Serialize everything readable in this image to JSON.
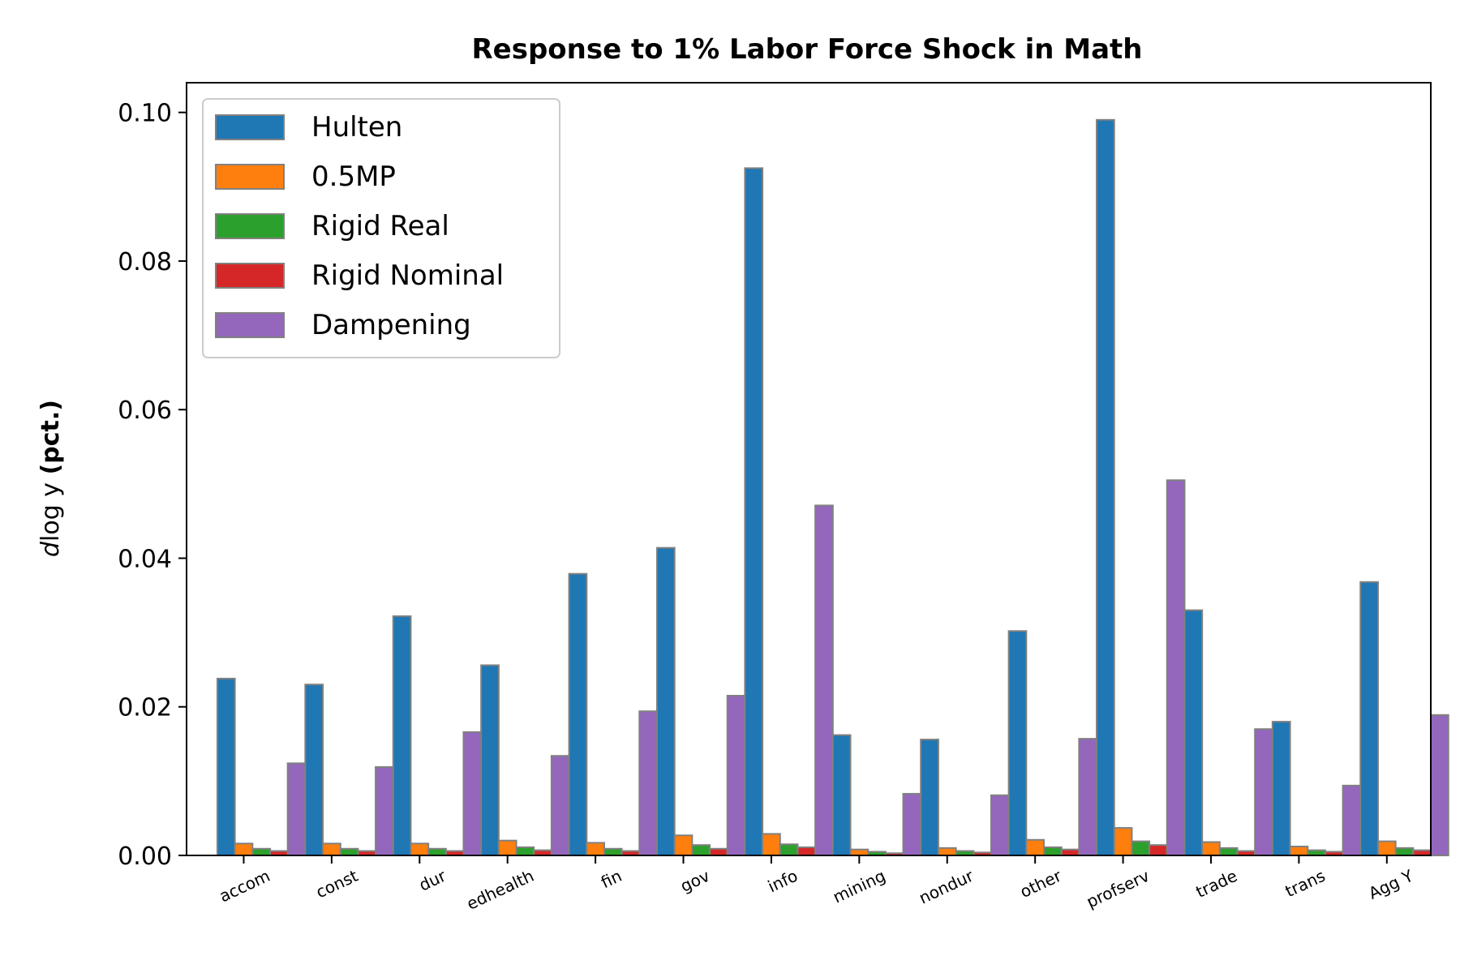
{
  "chart_data": {
    "type": "bar",
    "title": "Response to 1% Labor Force Shock in Math",
    "ylabel_italic": "d",
    "ylabel_math": "log y",
    "ylabel_bold": "(pct.)",
    "xlabel": "",
    "categories": [
      "accom",
      "const",
      "dur",
      "edhealth",
      "fin",
      "gov",
      "info",
      "mining",
      "nondur",
      "other",
      "profserv",
      "trade",
      "trans",
      "Agg Y"
    ],
    "ylim": [
      0,
      0.104
    ],
    "yticks": [
      0.0,
      0.02,
      0.04,
      0.06,
      0.08,
      0.1
    ],
    "ytick_labels": [
      "0.00",
      "0.02",
      "0.04",
      "0.06",
      "0.08",
      "0.10"
    ],
    "grid": false,
    "legend_position": "top-left",
    "series": [
      {
        "name": "Hulten",
        "color": "#1f77b4",
        "values": [
          0.0238,
          0.023,
          0.0322,
          0.0256,
          0.0379,
          0.0414,
          0.0925,
          0.0162,
          0.0156,
          0.0302,
          0.099,
          0.033,
          0.018,
          0.0368
        ]
      },
      {
        "name": "0.5MP",
        "color": "#ff7f0e",
        "values": [
          0.0016,
          0.0016,
          0.0016,
          0.002,
          0.0017,
          0.0027,
          0.0029,
          0.0008,
          0.001,
          0.0021,
          0.0037,
          0.0018,
          0.0012,
          0.0019
        ]
      },
      {
        "name": "Rigid Real",
        "color": "#2ca02c",
        "values": [
          0.0009,
          0.0009,
          0.0009,
          0.0011,
          0.0009,
          0.0014,
          0.0015,
          0.0005,
          0.0006,
          0.0011,
          0.0019,
          0.001,
          0.0007,
          0.001
        ]
      },
      {
        "name": "Rigid Nominal",
        "color": "#d62728",
        "values": [
          0.0006,
          0.0006,
          0.0006,
          0.0007,
          0.0006,
          0.0009,
          0.0011,
          0.0003,
          0.0004,
          0.0008,
          0.0014,
          0.0006,
          0.0005,
          0.0007
        ]
      },
      {
        "name": "Dampening",
        "color": "#9467bd",
        "values": [
          0.0124,
          0.0119,
          0.0166,
          0.0134,
          0.0194,
          0.0215,
          0.0471,
          0.0083,
          0.0081,
          0.0157,
          0.0505,
          0.017,
          0.0094,
          0.0189
        ]
      }
    ]
  }
}
